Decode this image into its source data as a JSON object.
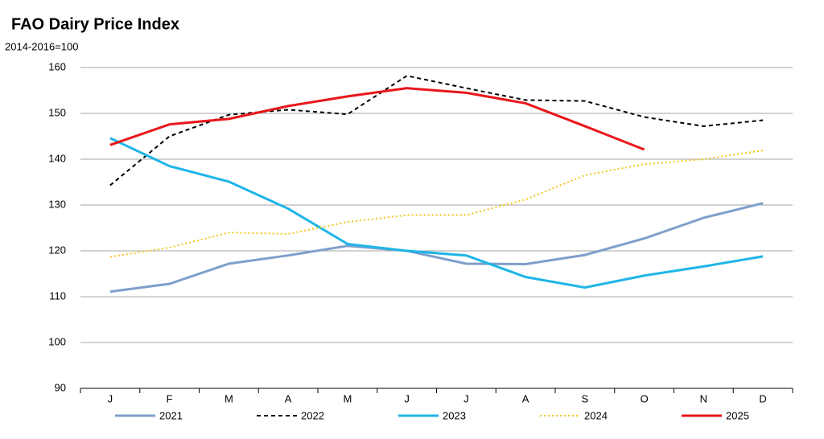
{
  "chart_data": {
    "type": "line",
    "title": "FAO Dairy Price Index",
    "subtitle": "2014-2016=100",
    "categories": [
      "J",
      "F",
      "M",
      "A",
      "M",
      "J",
      "J",
      "A",
      "S",
      "O",
      "N",
      "D"
    ],
    "ylim": [
      90,
      160
    ],
    "yticks": [
      90,
      100,
      110,
      120,
      130,
      140,
      150,
      160
    ],
    "grid": true,
    "legend": "bottom",
    "series": [
      {
        "name": "2021",
        "color": "#7f9fcb",
        "style": "solid",
        "values": [
          111.1,
          112.8,
          117.2,
          119.0,
          121.1,
          120.0,
          117.2,
          117.1,
          119.1,
          122.7,
          127.2,
          130.4
        ]
      },
      {
        "name": "2022",
        "color": "#000000",
        "style": "dashed",
        "values": [
          134.3,
          145.0,
          149.7,
          150.8,
          149.8,
          158.2,
          155.5,
          152.9,
          152.7,
          149.2,
          147.2,
          148.5
        ]
      },
      {
        "name": "2023",
        "color": "#1fb5e8",
        "style": "solid",
        "values": [
          144.6,
          138.5,
          135.1,
          129.2,
          121.5,
          120.0,
          119.0,
          114.3,
          112.0,
          114.6,
          116.6,
          118.8
        ]
      },
      {
        "name": "2024",
        "color": "#f5c518",
        "style": "dotted",
        "values": [
          118.7,
          120.7,
          124.0,
          123.7,
          126.3,
          127.8,
          127.8,
          131.2,
          136.5,
          138.9,
          140.0,
          141.9
        ]
      },
      {
        "name": "2025",
        "color": "#e8161b",
        "style": "solid",
        "values": [
          143.1,
          147.6,
          148.8,
          151.6,
          153.7,
          155.5,
          154.5,
          152.2,
          147.2,
          142.1,
          null,
          null
        ]
      }
    ]
  }
}
